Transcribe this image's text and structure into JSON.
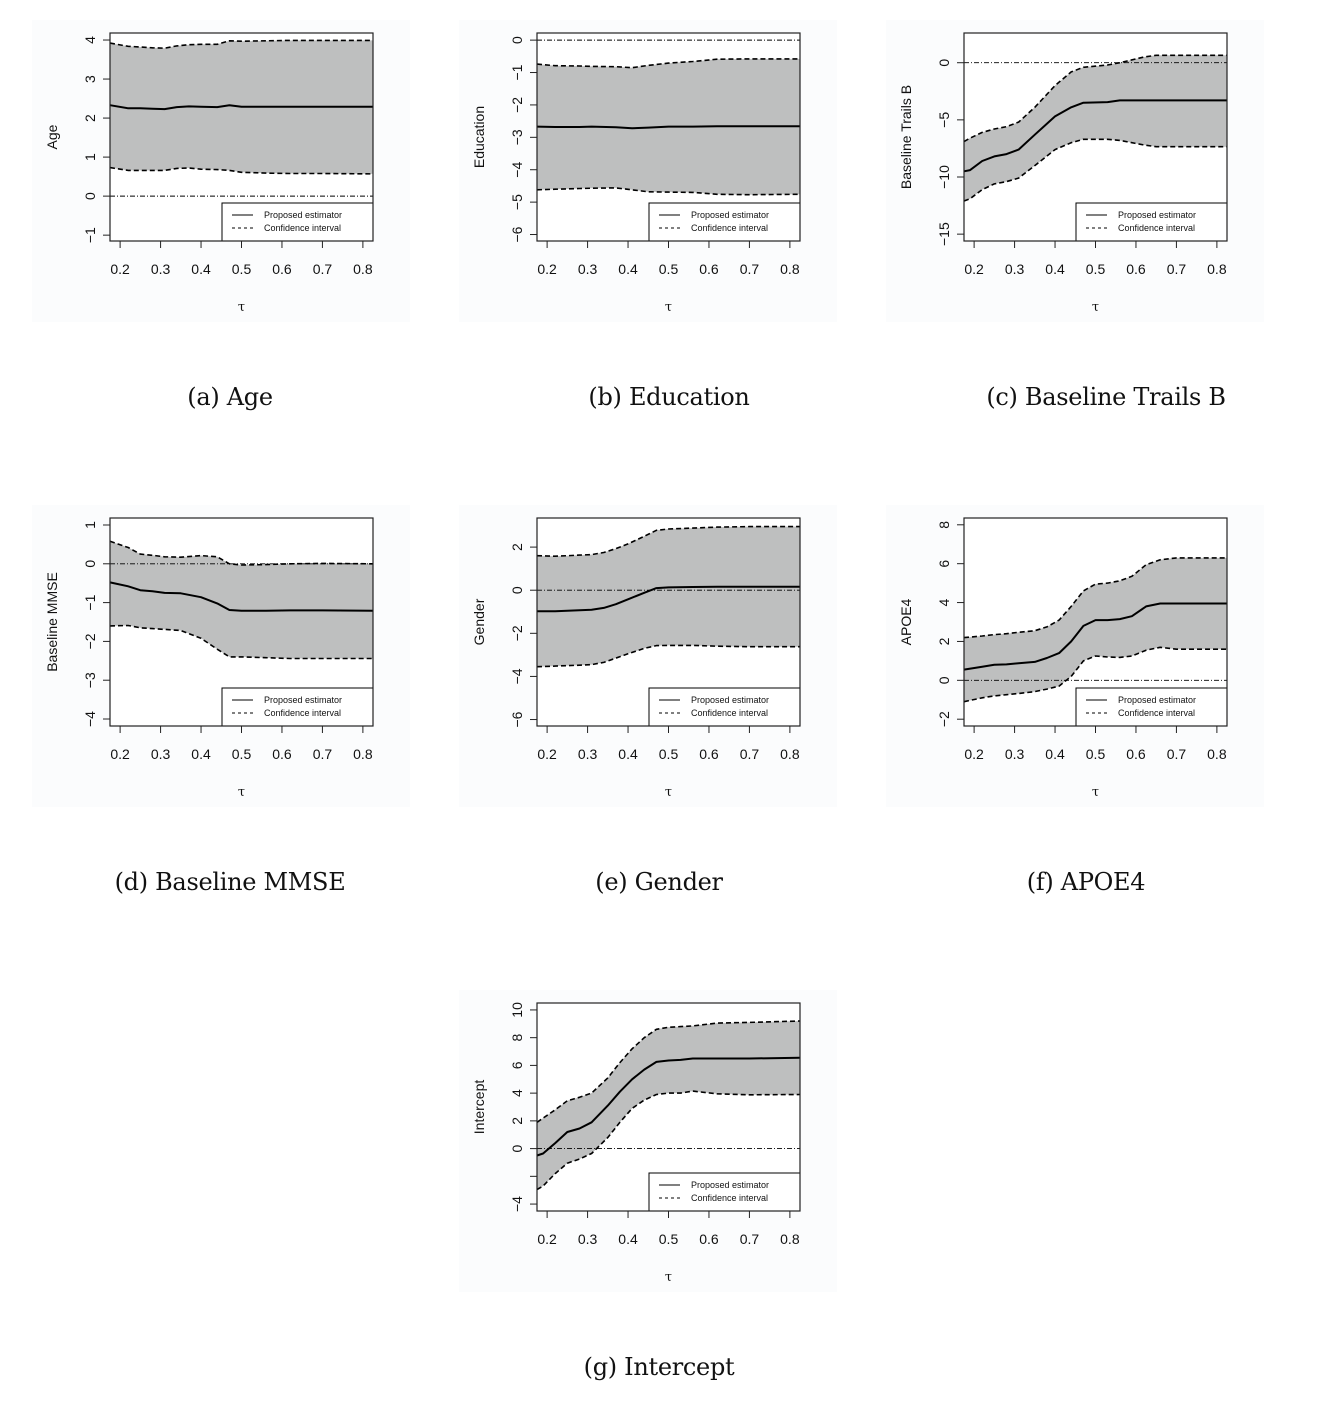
{
  "colors": {
    "band": "#bebfbf",
    "line": "#000000",
    "panel_bg": "#fbfcfd"
  },
  "legend": {
    "estimator_label": "Proposed estimator",
    "ci_label": "Confidence interval",
    "placement": "bottom-right"
  },
  "chart_data": [
    {
      "id": "age",
      "type": "line",
      "caption": "(a)  Age",
      "ylabel": "Age",
      "xlabel": "τ",
      "xlim": [
        0.175,
        0.825
      ],
      "ylim": [
        -1.15,
        4.18
      ],
      "xticks": [
        0.2,
        0.3,
        0.4,
        0.5,
        0.6,
        0.7,
        0.8
      ],
      "yticks": [
        -1,
        0,
        1,
        2,
        3,
        4
      ],
      "ytick_labels": [
        "−1",
        "0",
        "1",
        "2",
        "3",
        "4"
      ],
      "reference_line": 0,
      "x": [
        0.175,
        0.22,
        0.25,
        0.28,
        0.31,
        0.34,
        0.37,
        0.4,
        0.44,
        0.47,
        0.5,
        0.56,
        0.62,
        0.7,
        0.825
      ],
      "series": [
        {
          "name": "Proposed estimator",
          "values": [
            2.33,
            2.25,
            2.25,
            2.24,
            2.23,
            2.28,
            2.3,
            2.29,
            2.28,
            2.33,
            2.29,
            2.29,
            2.29,
            2.29,
            2.29
          ]
        },
        {
          "name": "CI upper",
          "values": [
            3.92,
            3.84,
            3.82,
            3.8,
            3.79,
            3.85,
            3.88,
            3.89,
            3.89,
            3.98,
            3.97,
            3.98,
            3.99,
            3.99,
            3.99
          ]
        },
        {
          "name": "CI lower",
          "values": [
            0.73,
            0.66,
            0.66,
            0.66,
            0.66,
            0.71,
            0.72,
            0.69,
            0.68,
            0.66,
            0.61,
            0.59,
            0.58,
            0.58,
            0.57
          ]
        }
      ]
    },
    {
      "id": "education",
      "type": "line",
      "caption": "(b)  Education",
      "ylabel": "Education",
      "xlabel": "τ",
      "xlim": [
        0.175,
        0.825
      ],
      "ylim": [
        -6.2,
        0.22
      ],
      "xticks": [
        0.2,
        0.3,
        0.4,
        0.5,
        0.6,
        0.7,
        0.8
      ],
      "yticks": [
        -6,
        -5,
        -4,
        -3,
        -2,
        -1,
        0
      ],
      "ytick_labels": [
        "−6",
        "−5",
        "−4",
        "−3",
        "−2",
        "−1",
        "0"
      ],
      "reference_line": 0,
      "x": [
        0.175,
        0.22,
        0.28,
        0.31,
        0.37,
        0.41,
        0.45,
        0.5,
        0.56,
        0.62,
        0.7,
        0.825
      ],
      "series": [
        {
          "name": "Proposed estimator",
          "values": [
            -2.67,
            -2.68,
            -2.68,
            -2.67,
            -2.69,
            -2.72,
            -2.7,
            -2.67,
            -2.67,
            -2.66,
            -2.66,
            -2.66
          ]
        },
        {
          "name": "CI upper",
          "values": [
            -0.74,
            -0.79,
            -0.8,
            -0.81,
            -0.82,
            -0.85,
            -0.78,
            -0.71,
            -0.66,
            -0.59,
            -0.58,
            -0.58
          ]
        },
        {
          "name": "CI lower",
          "values": [
            -4.62,
            -4.6,
            -4.58,
            -4.57,
            -4.56,
            -4.62,
            -4.68,
            -4.69,
            -4.7,
            -4.76,
            -4.77,
            -4.76
          ]
        }
      ]
    },
    {
      "id": "trails-b",
      "type": "line",
      "caption": "(c)  Baseline Trails B",
      "ylabel": "Baseline Trails B",
      "xlabel": "τ",
      "xlim": [
        0.175,
        0.825
      ],
      "ylim": [
        -15.6,
        2.6
      ],
      "xticks": [
        0.2,
        0.3,
        0.4,
        0.5,
        0.6,
        0.7,
        0.8
      ],
      "yticks": [
        -15,
        -10,
        -5,
        0
      ],
      "ytick_labels": [
        "−15",
        "−10",
        "−5",
        "0"
      ],
      "reference_line": 0,
      "x": [
        0.175,
        0.19,
        0.22,
        0.25,
        0.28,
        0.31,
        0.35,
        0.4,
        0.44,
        0.47,
        0.53,
        0.56,
        0.62,
        0.65,
        0.7,
        0.825
      ],
      "series": [
        {
          "name": "Proposed estimator",
          "values": [
            -9.5,
            -9.4,
            -8.6,
            -8.2,
            -8.0,
            -7.6,
            -6.3,
            -4.7,
            -3.9,
            -3.5,
            -3.45,
            -3.3,
            -3.3,
            -3.3,
            -3.3,
            -3.3
          ]
        },
        {
          "name": "CI upper",
          "values": [
            -6.9,
            -6.6,
            -6.1,
            -5.8,
            -5.6,
            -5.2,
            -3.9,
            -2.0,
            -0.8,
            -0.4,
            -0.2,
            0.0,
            0.5,
            0.65,
            0.65,
            0.65
          ]
        },
        {
          "name": "CI lower",
          "values": [
            -12.1,
            -11.9,
            -11.1,
            -10.6,
            -10.4,
            -10.1,
            -9.0,
            -7.6,
            -7.0,
            -6.7,
            -6.7,
            -6.8,
            -7.2,
            -7.35,
            -7.35,
            -7.35
          ]
        }
      ]
    },
    {
      "id": "mmse",
      "type": "line",
      "caption": "(d)  Baseline MMSE",
      "ylabel": "Baseline MMSE",
      "xlabel": "τ",
      "xlim": [
        0.175,
        0.825
      ],
      "ylim": [
        -4.18,
        1.18
      ],
      "xticks": [
        0.2,
        0.3,
        0.4,
        0.5,
        0.6,
        0.7,
        0.8
      ],
      "yticks": [
        -4,
        -3,
        -2,
        -1,
        0,
        1
      ],
      "ytick_labels": [
        "−4",
        "−3",
        "−2",
        "−1",
        "0",
        "1"
      ],
      "reference_line": 0,
      "x": [
        0.175,
        0.22,
        0.25,
        0.28,
        0.31,
        0.35,
        0.4,
        0.44,
        0.47,
        0.5,
        0.56,
        0.62,
        0.7,
        0.825
      ],
      "series": [
        {
          "name": "Proposed estimator",
          "values": [
            -0.48,
            -0.58,
            -0.68,
            -0.71,
            -0.75,
            -0.76,
            -0.86,
            -1.02,
            -1.19,
            -1.21,
            -1.21,
            -1.2,
            -1.2,
            -1.21
          ]
        },
        {
          "name": "CI upper",
          "values": [
            0.58,
            0.42,
            0.25,
            0.22,
            0.18,
            0.17,
            0.21,
            0.18,
            0.0,
            -0.03,
            -0.02,
            0.0,
            0.01,
            0.0
          ]
        },
        {
          "name": "CI lower",
          "values": [
            -1.6,
            -1.59,
            -1.65,
            -1.67,
            -1.69,
            -1.72,
            -1.92,
            -2.2,
            -2.4,
            -2.4,
            -2.42,
            -2.44,
            -2.44,
            -2.44
          ]
        }
      ]
    },
    {
      "id": "gender",
      "type": "line",
      "caption": "(e)  Gender",
      "ylabel": "Gender",
      "xlabel": "τ",
      "xlim": [
        0.175,
        0.825
      ],
      "ylim": [
        -6.3,
        3.35
      ],
      "xticks": [
        0.2,
        0.3,
        0.4,
        0.5,
        0.6,
        0.7,
        0.8
      ],
      "yticks": [
        -6,
        -4,
        -2,
        0,
        2
      ],
      "ytick_labels": [
        "−6",
        "−4",
        "−2",
        "0",
        "2"
      ],
      "reference_line": 0,
      "x": [
        0.175,
        0.22,
        0.25,
        0.28,
        0.31,
        0.34,
        0.37,
        0.4,
        0.44,
        0.47,
        0.5,
        0.56,
        0.62,
        0.7,
        0.825
      ],
      "series": [
        {
          "name": "Proposed estimator",
          "values": [
            -0.98,
            -0.98,
            -0.95,
            -0.93,
            -0.91,
            -0.82,
            -0.65,
            -0.42,
            -0.12,
            0.1,
            0.13,
            0.15,
            0.16,
            0.16,
            0.16
          ]
        },
        {
          "name": "CI upper",
          "values": [
            1.6,
            1.58,
            1.6,
            1.63,
            1.65,
            1.75,
            1.93,
            2.15,
            2.5,
            2.78,
            2.84,
            2.88,
            2.93,
            2.95,
            2.95
          ]
        },
        {
          "name": "CI lower",
          "values": [
            -3.55,
            -3.52,
            -3.5,
            -3.48,
            -3.45,
            -3.35,
            -3.15,
            -2.95,
            -2.7,
            -2.57,
            -2.56,
            -2.56,
            -2.6,
            -2.62,
            -2.62
          ]
        }
      ]
    },
    {
      "id": "apoe4",
      "type": "line",
      "caption": "(f)  APOE4",
      "ylabel": "APOE4",
      "xlabel": "τ",
      "xlim": [
        0.175,
        0.825
      ],
      "ylim": [
        -2.35,
        8.35
      ],
      "xticks": [
        0.2,
        0.3,
        0.4,
        0.5,
        0.6,
        0.7,
        0.8
      ],
      "yticks": [
        -2,
        0,
        2,
        4,
        6,
        8
      ],
      "ytick_labels": [
        "−2",
        "0",
        "2",
        "4",
        "6",
        "8"
      ],
      "reference_line": 0,
      "x": [
        0.175,
        0.22,
        0.25,
        0.28,
        0.31,
        0.35,
        0.38,
        0.41,
        0.44,
        0.47,
        0.5,
        0.53,
        0.56,
        0.59,
        0.625,
        0.66,
        0.7,
        0.825
      ],
      "series": [
        {
          "name": "Proposed estimator",
          "values": [
            0.55,
            0.7,
            0.8,
            0.82,
            0.88,
            0.95,
            1.15,
            1.4,
            2.0,
            2.8,
            3.1,
            3.1,
            3.15,
            3.3,
            3.8,
            3.95,
            3.95,
            3.95
          ]
        },
        {
          "name": "CI upper",
          "values": [
            2.2,
            2.28,
            2.35,
            2.4,
            2.47,
            2.55,
            2.75,
            3.1,
            3.8,
            4.6,
            4.95,
            5.0,
            5.12,
            5.35,
            5.95,
            6.2,
            6.3,
            6.3
          ]
        },
        {
          "name": "CI lower",
          "values": [
            -1.1,
            -0.9,
            -0.8,
            -0.74,
            -0.68,
            -0.58,
            -0.45,
            -0.3,
            0.2,
            1.0,
            1.25,
            1.2,
            1.18,
            1.25,
            1.55,
            1.7,
            1.6,
            1.6
          ]
        }
      ]
    },
    {
      "id": "intercept",
      "type": "line",
      "caption": "(g)  Intercept",
      "ylabel": "Intercept",
      "xlabel": "τ",
      "xlim": [
        0.175,
        0.825
      ],
      "ylim": [
        -4.5,
        10.5
      ],
      "xticks": [
        0.2,
        0.3,
        0.4,
        0.5,
        0.6,
        0.7,
        0.8
      ],
      "yticks": [
        -4,
        -2,
        0,
        2,
        4,
        6,
        8,
        10
      ],
      "ytick_labels": [
        "−4",
        "",
        "0",
        "2",
        "4",
        "6",
        "8",
        "10"
      ],
      "reference_line": 0,
      "x": [
        0.175,
        0.19,
        0.22,
        0.25,
        0.28,
        0.31,
        0.35,
        0.38,
        0.41,
        0.44,
        0.47,
        0.5,
        0.53,
        0.56,
        0.62,
        0.7,
        0.825
      ],
      "series": [
        {
          "name": "Proposed estimator",
          "values": [
            -0.5,
            -0.35,
            0.4,
            1.2,
            1.45,
            1.9,
            3.1,
            4.1,
            5.0,
            5.7,
            6.25,
            6.35,
            6.4,
            6.5,
            6.5,
            6.5,
            6.55
          ]
        },
        {
          "name": "CI upper",
          "values": [
            1.9,
            2.2,
            2.8,
            3.45,
            3.7,
            4.0,
            5.1,
            6.2,
            7.2,
            8.0,
            8.6,
            8.75,
            8.8,
            8.85,
            9.05,
            9.1,
            9.2
          ]
        },
        {
          "name": "CI lower",
          "values": [
            -2.95,
            -2.7,
            -1.8,
            -1.05,
            -0.75,
            -0.35,
            0.8,
            1.9,
            2.9,
            3.5,
            3.9,
            4.0,
            4.0,
            4.15,
            3.95,
            3.88,
            3.9
          ]
        }
      ]
    }
  ]
}
